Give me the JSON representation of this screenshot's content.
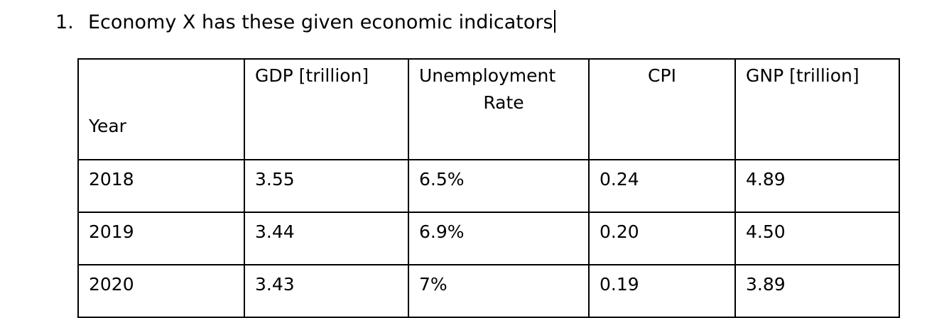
{
  "question": {
    "number": "1.",
    "text": "Economy X has these given economic indicators"
  },
  "table": {
    "headers": {
      "year": "Year",
      "gdp": "GDP [trillion]",
      "unemployment_line1": "Unemployment",
      "unemployment_line2": "Rate",
      "cpi": "CPI",
      "gnp": "GNP [trillion]"
    },
    "rows": [
      {
        "year": "2018",
        "gdp": "3.55",
        "unemployment": "6.5%",
        "cpi": "0.24",
        "gnp": "4.89"
      },
      {
        "year": "2019",
        "gdp": "3.44",
        "unemployment": "6.9%",
        "cpi": "0.20",
        "gnp": "4.50"
      },
      {
        "year": "2020",
        "gdp": "3.43",
        "unemployment": "7%",
        "cpi": "0.19",
        "gnp": "3.89"
      }
    ]
  }
}
